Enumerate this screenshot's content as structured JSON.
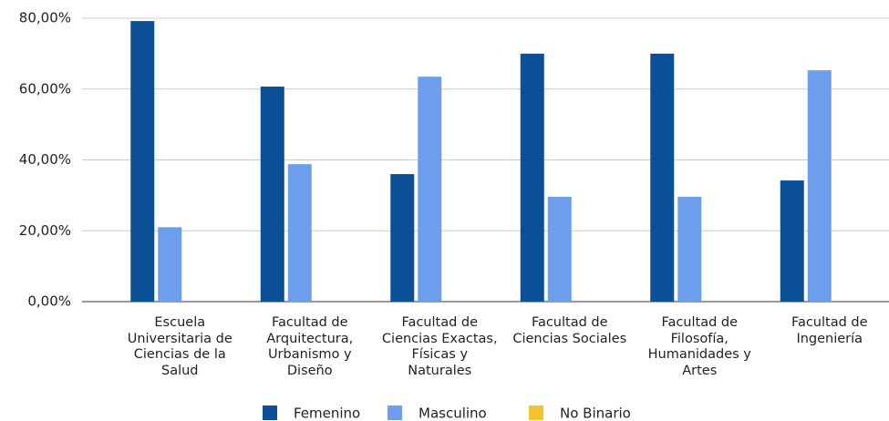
{
  "chart_data": {
    "type": "bar",
    "categories": [
      "Escuela Universitaria de Ciencias de la Salud",
      "Facultad de Arquitectura, Urbanismo y Diseño",
      "Facultad de Ciencias Exactas, Físicas y Naturales",
      "Facultad de Ciencias Sociales",
      "Facultad de Filosofía, Humanidades y Artes",
      "Facultad de Ingeniería"
    ],
    "series": [
      {
        "name": "Femenino",
        "color": "#0b4f96",
        "values": [
          79.2,
          60.7,
          36,
          70,
          70,
          34.2
        ]
      },
      {
        "name": "Masculino",
        "color": "#6d9eeb",
        "values": [
          21,
          38.8,
          63.5,
          29.6,
          29.6,
          65.3
        ]
      },
      {
        "name": "No Binario",
        "color": "#f4c430",
        "values": [
          0,
          0,
          0,
          0,
          0,
          0
        ]
      }
    ],
    "ylim": [
      0,
      80
    ],
    "yticks": [
      {
        "value": 0,
        "label": "0,00%"
      },
      {
        "value": 20,
        "label": "20,00%"
      },
      {
        "value": 40,
        "label": "40,00%"
      },
      {
        "value": 60,
        "label": "60,00%"
      },
      {
        "value": 80,
        "label": "80,00%"
      }
    ],
    "grid": true,
    "legend": "bottom"
  }
}
